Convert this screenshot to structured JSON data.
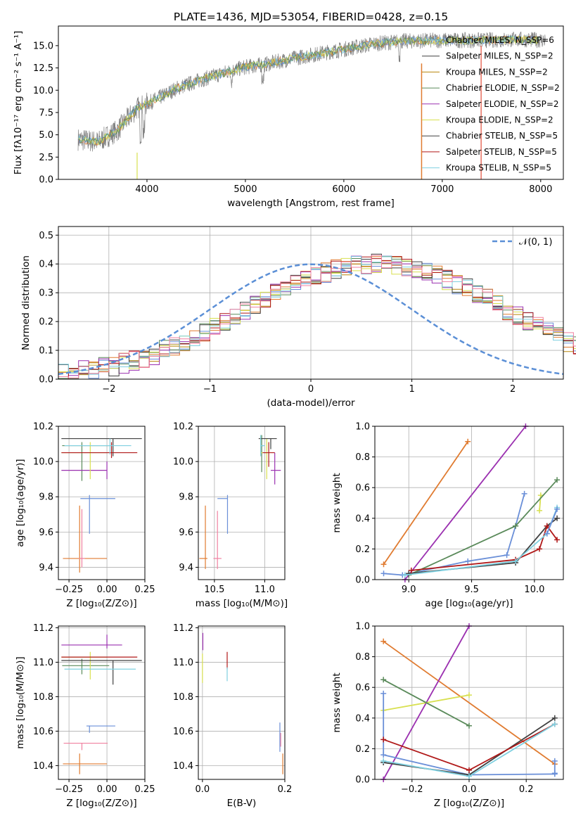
{
  "title": "PLATE=1436, MJD=53054, FIBERID=0428, z=0.15",
  "colors": {
    "c1": "#6a8fd8",
    "c2": "#e07b30",
    "c3": "#b8860b",
    "c4": "#5a8a5a",
    "c5": "#9b30b0",
    "c6": "#d8e050",
    "c7": "#404040",
    "c8": "#b01818",
    "c9": "#7fd0e0",
    "pink": "#f080a0",
    "spec": "#808080",
    "gauss": "#5b8fd6",
    "grid": "#b0b0b0"
  },
  "chart_data": [
    {
      "id": "spectrum",
      "type": "line",
      "xlabel": "wavelength [Angstrom, rest frame]",
      "ylabel": "Flux [fλ10⁻¹⁷ erg cm⁻² s⁻¹ A⁻¹]",
      "xlim": [
        3100,
        8230
      ],
      "ylim": [
        0,
        17.2
      ],
      "xticks": [
        "4000",
        "5000",
        "6000",
        "7000",
        "8000"
      ],
      "yticks": [
        "0.0",
        "2.5",
        "5.0",
        "7.5",
        "10.0",
        "12.5",
        "15.0"
      ],
      "grid": false,
      "legend_position": "top-right",
      "legend": [
        "Chabrier MILES, N_SSP=6",
        "Salpeter MILES, N_SSP=2",
        "Kroupa MILES, N_SSP=2",
        "Chabrier ELODIE, N_SSP=2",
        "Salpeter ELODIE, N_SSP=2",
        "Kroupa ELODIE, N_SSP=2",
        "Chabrier STELIB, N_SSP=5",
        "Salpeter STELIB, N_SSP=5",
        "Kroupa STELIB, N_SSP=5"
      ],
      "continuum": [
        [
          3300,
          4.5
        ],
        [
          3500,
          4.2
        ],
        [
          3700,
          5.5
        ],
        [
          3900,
          8.0
        ],
        [
          4100,
          9.0
        ],
        [
          4300,
          10.2
        ],
        [
          4500,
          11.0
        ],
        [
          4800,
          12.0
        ],
        [
          5000,
          12.6
        ],
        [
          5200,
          12.9
        ],
        [
          5500,
          13.6
        ],
        [
          5800,
          14.2
        ],
        [
          6000,
          14.6
        ],
        [
          6300,
          15.2
        ],
        [
          6600,
          15.5
        ],
        [
          7000,
          15.6
        ],
        [
          7400,
          15.6
        ],
        [
          7800,
          15.7
        ],
        [
          8050,
          15.6
        ]
      ]
    },
    {
      "id": "residuals",
      "type": "histogram",
      "xlabel": "(data-model)/error",
      "ylabel": "Normed distribution",
      "xlim": [
        -2.5,
        2.5
      ],
      "ylim": [
        0,
        0.53
      ],
      "xticks": [
        "−2",
        "−1",
        "0",
        "1",
        "2"
      ],
      "yticks": [
        "0.0",
        "0.1",
        "0.2",
        "0.3",
        "0.4",
        "0.5"
      ],
      "grid": true,
      "legend": [
        "𝒩(0, 1)"
      ],
      "legend_position": "top-right",
      "bin_width": 0.1,
      "bin_start": -2.5,
      "base_values": [
        0.02,
        0.025,
        0.03,
        0.035,
        0.04,
        0.045,
        0.055,
        0.065,
        0.075,
        0.085,
        0.1,
        0.115,
        0.13,
        0.145,
        0.16,
        0.18,
        0.2,
        0.22,
        0.24,
        0.26,
        0.28,
        0.3,
        0.315,
        0.33,
        0.345,
        0.36,
        0.37,
        0.38,
        0.39,
        0.395,
        0.4,
        0.4,
        0.4,
        0.395,
        0.39,
        0.38,
        0.37,
        0.36,
        0.345,
        0.33,
        0.315,
        0.3,
        0.28,
        0.26,
        0.24,
        0.22,
        0.2,
        0.18,
        0.16,
        0.145,
        0.13,
        0.115,
        0.1,
        0.085,
        0.075,
        0.065,
        0.055,
        0.045,
        0.04,
        0.035,
        0.03
      ]
    },
    {
      "id": "age_vs_Z",
      "type": "errorbar",
      "xlabel": "Z [log₁₀(Z/Z⊙)]",
      "ylabel": "age  [log₁₀(age/yr)]",
      "xlim": [
        -0.32,
        0.25
      ],
      "ylim": [
        9.33,
        10.2
      ],
      "xticks": [
        "−0.25",
        "0.00",
        "0.25"
      ],
      "yticks": [
        "9.4",
        "9.6",
        "9.8",
        "10.0",
        "10.2"
      ],
      "grid": true,
      "points": [
        {
          "c": "c1",
          "x": -0.115,
          "y": 9.79,
          "xl": 0.06,
          "xh": 0.17,
          "yl": 0.2,
          "yh": 0.02
        },
        {
          "c": "c2",
          "x": -0.18,
          "y": 9.45,
          "xl": 0.11,
          "xh": 0.18,
          "yl": 0.08,
          "yh": 0.3
        },
        {
          "c": "pink",
          "x": -0.165,
          "y": 9.45,
          "xl": 0.02,
          "xh": 0.02,
          "yl": 0.05,
          "yh": 0.28
        },
        {
          "c": "c4",
          "x": -0.165,
          "y": 10.09,
          "xl": 0.13,
          "xh": 0.18,
          "yl": 0.2,
          "yh": 0.02
        },
        {
          "c": "c5",
          "x": 0.0,
          "y": 9.95,
          "xl": 0.3,
          "xh": 0.0,
          "yl": 0.05,
          "yh": 0.05
        },
        {
          "c": "c6",
          "x": -0.11,
          "y": 10.05,
          "xl": 0.19,
          "xh": 0.11,
          "yl": 0.15,
          "yh": 0.06
        },
        {
          "c": "c7",
          "x": 0.04,
          "y": 10.13,
          "xl": 0.34,
          "xh": 0.19,
          "yl": 0.1,
          "yh": 0.0
        },
        {
          "c": "c8",
          "x": 0.03,
          "y": 10.05,
          "xl": 0.33,
          "xh": 0.17,
          "yl": 0.03,
          "yh": 0.06
        },
        {
          "c": "c9",
          "x": 0.02,
          "y": 10.09,
          "xl": 0.3,
          "xh": 0.14,
          "yl": 0.05,
          "yh": 0.04
        }
      ]
    },
    {
      "id": "age_vs_mass",
      "type": "errorbar",
      "xlabel": "mass [log₁₀(M/M⊙)]",
      "ylabel": "",
      "xlim": [
        10.34,
        11.2
      ],
      "ylim": [
        9.33,
        10.2
      ],
      "xticks": [
        "10.5",
        "11.0"
      ],
      "yticks": [
        "9.4",
        "9.6",
        "9.8",
        "10.0",
        "10.2"
      ],
      "grid": true,
      "points": [
        {
          "c": "c1",
          "x": 10.63,
          "y": 9.79,
          "xl": 0.1,
          "xh": 0.0,
          "yl": 0.2,
          "yh": 0.02
        },
        {
          "c": "c2",
          "x": 10.41,
          "y": 9.45,
          "xl": 0.06,
          "xh": 0.02,
          "yl": 0.06,
          "yh": 0.3
        },
        {
          "c": "pink",
          "x": 10.53,
          "y": 9.45,
          "xl": 0.04,
          "xh": 0.04,
          "yl": 0.06,
          "yh": 0.27
        },
        {
          "c": "c4",
          "x": 10.97,
          "y": 10.09,
          "xl": 0.0,
          "xh": 0.02,
          "yl": 0.15,
          "yh": 0.06
        },
        {
          "c": "c5",
          "x": 11.1,
          "y": 9.95,
          "xl": 0.04,
          "xh": 0.06,
          "yl": 0.08,
          "yh": 0.1
        },
        {
          "c": "c6",
          "x": 11.02,
          "y": 10.05,
          "xl": 0.06,
          "xh": 0.0,
          "yl": 0.15,
          "yh": 0.08
        },
        {
          "c": "c7",
          "x": 11.06,
          "y": 10.13,
          "xl": 0.12,
          "xh": 0.06,
          "yl": 0.06,
          "yh": 0.0
        },
        {
          "c": "c8",
          "x": 11.04,
          "y": 10.05,
          "xl": 0.06,
          "xh": 0.06,
          "yl": 0.08,
          "yh": 0.06
        },
        {
          "c": "c9",
          "x": 10.96,
          "y": 10.09,
          "xl": 0.0,
          "xh": 0.04,
          "yl": 0.06,
          "yh": 0.06
        }
      ]
    },
    {
      "id": "weight_vs_age",
      "type": "line",
      "xlabel": "age  [log₁₀(age/yr)]",
      "ylabel": "mass weight",
      "xlim": [
        8.73,
        10.23
      ],
      "ylim": [
        0,
        1.0
      ],
      "xticks": [
        "9.0",
        "9.5",
        "10.0"
      ],
      "yticks": [
        "0.0",
        "0.2",
        "0.4",
        "0.6",
        "0.8",
        "1.0"
      ],
      "grid": true,
      "series": [
        {
          "c": "c2",
          "x": [
            8.8,
            9.47
          ],
          "y": [
            0.1,
            0.9
          ]
        },
        {
          "c": "c5",
          "x": [
            8.97,
            9.93
          ],
          "y": [
            0.0,
            1.0
          ]
        },
        {
          "c": "c1",
          "x": [
            8.8,
            8.95,
            9.47,
            9.78,
            9.85,
            9.92
          ],
          "y": [
            0.04,
            0.03,
            0.12,
            0.16,
            0.35,
            0.56
          ]
        },
        {
          "c": "c6",
          "x": [
            10.04,
            10.05
          ],
          "y": [
            0.45,
            0.55
          ]
        },
        {
          "c": "c4",
          "x": [
            9.0,
            9.85,
            10.18
          ],
          "y": [
            0.03,
            0.35,
            0.65
          ]
        },
        {
          "c": "c7",
          "x": [
            9.0,
            9.85,
            10.1,
            10.18
          ],
          "y": [
            0.04,
            0.11,
            0.35,
            0.4
          ]
        },
        {
          "c": "c8",
          "x": [
            9.02,
            9.85,
            10.04,
            10.1,
            10.18
          ],
          "y": [
            0.06,
            0.13,
            0.2,
            0.35,
            0.26
          ]
        },
        {
          "c": "c9",
          "x": [
            8.97,
            9.85,
            10.1,
            10.18
          ],
          "y": [
            0.03,
            0.12,
            0.3,
            0.47
          ]
        },
        {
          "c": "c1",
          "x": [
            10.1,
            10.18
          ],
          "y": [
            0.3,
            0.46
          ]
        }
      ]
    },
    {
      "id": "mass_vs_Z",
      "type": "errorbar",
      "xlabel": "Z [log₁₀(Z/Z⊙)]",
      "ylabel": "mass [log₁₀(M/M⊙)]",
      "xlim": [
        -0.32,
        0.25
      ],
      "ylim": [
        10.32,
        11.21
      ],
      "xticks": [
        "−0.25",
        "0.00",
        "0.25"
      ],
      "yticks": [
        "10.4",
        "10.6",
        "10.8",
        "11.0",
        "11.2"
      ],
      "grid": true,
      "points": [
        {
          "c": "c1",
          "x": -0.115,
          "y": 10.63,
          "xl": 0.02,
          "xh": 0.17,
          "yl": 0.04,
          "yh": 0.0
        },
        {
          "c": "c2",
          "x": -0.18,
          "y": 10.41,
          "xl": 0.11,
          "xh": 0.18,
          "yl": 0.06,
          "yh": 0.06
        },
        {
          "c": "pink",
          "x": -0.165,
          "y": 10.53,
          "xl": 0.12,
          "xh": 0.17,
          "yl": 0.04,
          "yh": 0.0
        },
        {
          "c": "c4",
          "x": -0.165,
          "y": 10.98,
          "xl": 0.13,
          "xh": 0.18,
          "yl": 0.05,
          "yh": 0.04
        },
        {
          "c": "c5",
          "x": 0.0,
          "y": 11.1,
          "xl": 0.3,
          "xh": 0.1,
          "yl": 0.02,
          "yh": 0.06
        },
        {
          "c": "c6",
          "x": -0.11,
          "y": 11.03,
          "xl": 0.19,
          "xh": 0.11,
          "yl": 0.13,
          "yh": 0.03
        },
        {
          "c": "c7",
          "x": 0.04,
          "y": 11.01,
          "xl": 0.34,
          "xh": 0.19,
          "yl": 0.14,
          "yh": 0.0
        },
        {
          "c": "c8",
          "x": 0.03,
          "y": 11.03,
          "xl": 0.33,
          "xh": 0.17,
          "yl": 0.0,
          "yh": 0.0
        },
        {
          "c": "c9",
          "x": 0.02,
          "y": 10.96,
          "xl": 0.3,
          "xh": 0.17,
          "yl": 0.0,
          "yh": 0.0
        }
      ]
    },
    {
      "id": "mass_vs_EBV",
      "type": "errorbar",
      "xlabel": "E(B-V)",
      "ylabel": "",
      "xlim": [
        -0.01,
        0.2
      ],
      "ylim": [
        10.32,
        11.21
      ],
      "xticks": [
        "0.0",
        "0.2"
      ],
      "yticks": [
        "10.4",
        "10.6",
        "10.8",
        "11.0",
        "11.2"
      ],
      "grid": true,
      "points": [
        {
          "c": "c1",
          "x": 0.188,
          "y": 10.57,
          "xl": 0.0,
          "xh": 0.0,
          "yl": 0.09,
          "yh": 0.08
        },
        {
          "c": "c2",
          "x": 0.195,
          "y": 10.41,
          "xl": 0.0,
          "xh": 0.0,
          "yl": 0.06,
          "yh": 0.06
        },
        {
          "c": "pink",
          "x": 0.19,
          "y": 10.55,
          "xl": 0.0,
          "xh": 0.0,
          "yl": 0.04,
          "yh": 0.04
        },
        {
          "c": "c5",
          "x": 0.001,
          "y": 11.1,
          "xl": 0.0,
          "xh": 0.0,
          "yl": 0.03,
          "yh": 0.07
        },
        {
          "c": "c6",
          "x": 0.0,
          "y": 10.97,
          "xl": 0.0,
          "xh": 0.0,
          "yl": 0.09,
          "yh": 0.08
        },
        {
          "c": "c8",
          "x": 0.06,
          "y": 11.0,
          "xl": 0.0,
          "xh": 0.0,
          "yl": 0.04,
          "yh": 0.06
        },
        {
          "c": "c9",
          "x": 0.06,
          "y": 10.95,
          "xl": 0.0,
          "xh": 0.0,
          "yl": 0.06,
          "yh": 0.02
        }
      ]
    },
    {
      "id": "weight_vs_Z",
      "type": "line",
      "xlabel": "Z [log₁₀(Z/Z⊙)]",
      "ylabel": "mass weight",
      "xlim": [
        -0.33,
        0.33
      ],
      "ylim": [
        0,
        1.0
      ],
      "xticks": [
        "−0.2",
        "0.0",
        "0.2"
      ],
      "yticks": [
        "0.0",
        "0.2",
        "0.4",
        "0.6",
        "0.8",
        "1.0"
      ],
      "grid": true,
      "series": [
        {
          "c": "c2",
          "x": [
            -0.3,
            0.3
          ],
          "y": [
            0.9,
            0.1
          ]
        },
        {
          "c": "c5",
          "x": [
            -0.3,
            0.0
          ],
          "y": [
            0.0,
            1.0
          ]
        },
        {
          "c": "c6",
          "x": [
            -0.3,
            0.0
          ],
          "y": [
            0.45,
            0.55
          ]
        },
        {
          "c": "c4",
          "x": [
            -0.3,
            0.0
          ],
          "y": [
            0.65,
            0.35
          ]
        },
        {
          "c": "c1",
          "x": [
            -0.3,
            -0.3,
            0.0,
            0.3
          ],
          "y": [
            0.56,
            0.16,
            0.03,
            0.035
          ]
        },
        {
          "c": "c7",
          "x": [
            -0.3,
            0.0,
            0.3
          ],
          "y": [
            0.11,
            0.03,
            0.4
          ]
        },
        {
          "c": "c8",
          "x": [
            -0.3,
            0.0,
            0.3
          ],
          "y": [
            0.26,
            0.06,
            0.36
          ]
        },
        {
          "c": "c9",
          "x": [
            -0.3,
            0.0,
            0.3
          ],
          "y": [
            0.12,
            0.02,
            0.36
          ]
        },
        {
          "c": "c1",
          "x": [
            0.3,
            0.3
          ],
          "y": [
            0.04,
            0.12
          ]
        }
      ]
    }
  ]
}
